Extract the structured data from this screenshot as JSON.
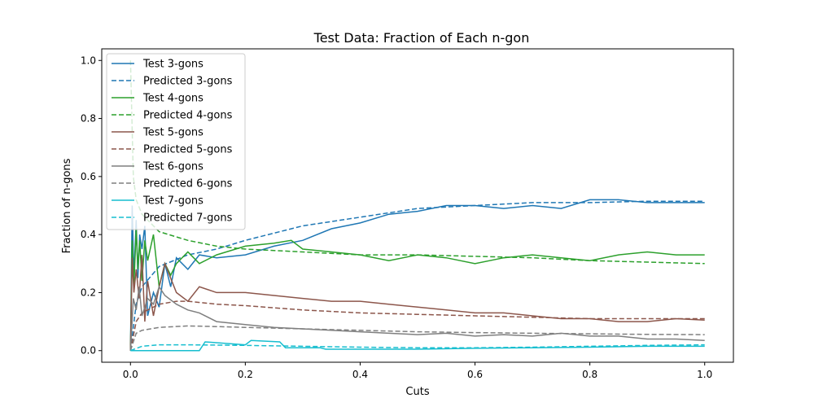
{
  "chart_data": {
    "type": "line",
    "title": "Test Data: Fraction of Each n-gon",
    "xlabel": "Cuts",
    "ylabel": "Fraction of n-gons",
    "xlim": [
      -0.05,
      1.05
    ],
    "ylim": [
      -0.04,
      1.04
    ],
    "xticks": [
      "0.0",
      "0.2",
      "0.4",
      "0.6",
      "0.8",
      "1.0"
    ],
    "yticks": [
      "0.0",
      "0.2",
      "0.4",
      "0.6",
      "0.8",
      "1.0"
    ],
    "grid": false,
    "legend_position": "top-left",
    "series": [
      {
        "name": "Test 3-gons",
        "color": "#1f77b4",
        "dash": "solid",
        "x": [
          0,
          0.003,
          0.006,
          0.01,
          0.013,
          0.016,
          0.02,
          0.025,
          0.03,
          0.04,
          0.05,
          0.06,
          0.07,
          0.08,
          0.1,
          0.12,
          0.15,
          0.2,
          0.25,
          0.3,
          0.35,
          0.4,
          0.45,
          0.5,
          0.55,
          0.6,
          0.65,
          0.7,
          0.75,
          0.8,
          0.85,
          0.9,
          0.95,
          1.0
        ],
        "y": [
          0,
          0.5,
          0.25,
          0.45,
          0.25,
          0.4,
          0.35,
          0.43,
          0.12,
          0.2,
          0.15,
          0.3,
          0.22,
          0.32,
          0.28,
          0.33,
          0.32,
          0.33,
          0.36,
          0.38,
          0.42,
          0.44,
          0.47,
          0.48,
          0.5,
          0.5,
          0.49,
          0.5,
          0.49,
          0.52,
          0.52,
          0.51,
          0.51,
          0.51
        ]
      },
      {
        "name": "Predicted 3-gons",
        "color": "#1f77b4",
        "dash": "dashed",
        "x": [
          0,
          0.01,
          0.02,
          0.05,
          0.1,
          0.15,
          0.2,
          0.3,
          0.4,
          0.5,
          0.6,
          0.7,
          0.8,
          0.9,
          1.0
        ],
        "y": [
          0,
          0.16,
          0.22,
          0.29,
          0.33,
          0.35,
          0.38,
          0.43,
          0.46,
          0.49,
          0.5,
          0.51,
          0.51,
          0.515,
          0.515
        ]
      },
      {
        "name": "Test 4-gons",
        "color": "#2ca02c",
        "dash": "solid",
        "x": [
          0,
          0.003,
          0.006,
          0.01,
          0.013,
          0.016,
          0.02,
          0.025,
          0.03,
          0.04,
          0.05,
          0.06,
          0.07,
          0.08,
          0.1,
          0.12,
          0.15,
          0.2,
          0.25,
          0.28,
          0.3,
          0.35,
          0.4,
          0.45,
          0.5,
          0.55,
          0.6,
          0.65,
          0.7,
          0.75,
          0.8,
          0.85,
          0.9,
          0.95,
          1.0
        ],
        "y": [
          0,
          0.38,
          0.22,
          0.42,
          0.28,
          0.38,
          0.24,
          0.38,
          0.31,
          0.4,
          0.22,
          0.3,
          0.26,
          0.3,
          0.34,
          0.3,
          0.33,
          0.36,
          0.37,
          0.38,
          0.35,
          0.34,
          0.33,
          0.31,
          0.33,
          0.32,
          0.3,
          0.32,
          0.33,
          0.32,
          0.31,
          0.33,
          0.34,
          0.33,
          0.33
        ]
      },
      {
        "name": "Predicted 4-gons",
        "color": "#2ca02c",
        "dash": "dashed",
        "x": [
          0,
          0.005,
          0.01,
          0.02,
          0.05,
          0.1,
          0.15,
          0.2,
          0.3,
          0.4,
          0.5,
          0.6,
          0.7,
          0.8,
          0.9,
          1.0
        ],
        "y": [
          1.0,
          0.6,
          0.52,
          0.47,
          0.41,
          0.38,
          0.36,
          0.35,
          0.34,
          0.33,
          0.33,
          0.325,
          0.32,
          0.31,
          0.305,
          0.3
        ]
      },
      {
        "name": "Test 5-gons",
        "color": "#8c564b",
        "dash": "solid",
        "x": [
          0,
          0.003,
          0.006,
          0.01,
          0.015,
          0.02,
          0.025,
          0.03,
          0.04,
          0.05,
          0.06,
          0.08,
          0.1,
          0.12,
          0.15,
          0.2,
          0.25,
          0.3,
          0.35,
          0.4,
          0.45,
          0.5,
          0.55,
          0.6,
          0.65,
          0.7,
          0.75,
          0.8,
          0.85,
          0.9,
          0.95,
          1.0
        ],
        "y": [
          0,
          0.32,
          0.2,
          0.28,
          0.18,
          0.33,
          0.1,
          0.24,
          0.12,
          0.22,
          0.3,
          0.2,
          0.17,
          0.22,
          0.2,
          0.2,
          0.19,
          0.18,
          0.17,
          0.17,
          0.16,
          0.15,
          0.14,
          0.13,
          0.13,
          0.12,
          0.11,
          0.11,
          0.1,
          0.1,
          0.11,
          0.105
        ]
      },
      {
        "name": "Predicted 5-gons",
        "color": "#8c564b",
        "dash": "dashed",
        "x": [
          0,
          0.01,
          0.02,
          0.05,
          0.08,
          0.1,
          0.15,
          0.2,
          0.3,
          0.4,
          0.5,
          0.6,
          0.7,
          0.8,
          0.9,
          1.0
        ],
        "y": [
          0,
          0.1,
          0.13,
          0.16,
          0.17,
          0.17,
          0.16,
          0.155,
          0.14,
          0.13,
          0.125,
          0.12,
          0.115,
          0.11,
          0.11,
          0.11
        ]
      },
      {
        "name": "Test 6-gons",
        "color": "#7f7f7f",
        "dash": "solid",
        "x": [
          0,
          0.005,
          0.01,
          0.015,
          0.02,
          0.03,
          0.04,
          0.05,
          0.06,
          0.08,
          0.1,
          0.12,
          0.15,
          0.2,
          0.25,
          0.3,
          0.35,
          0.4,
          0.45,
          0.5,
          0.55,
          0.6,
          0.65,
          0.7,
          0.75,
          0.8,
          0.85,
          0.9,
          0.95,
          1.0
        ],
        "y": [
          0,
          0.18,
          0.14,
          0.22,
          0.12,
          0.18,
          0.16,
          0.22,
          0.19,
          0.16,
          0.14,
          0.13,
          0.1,
          0.09,
          0.08,
          0.075,
          0.07,
          0.065,
          0.06,
          0.055,
          0.06,
          0.05,
          0.055,
          0.05,
          0.06,
          0.05,
          0.05,
          0.04,
          0.04,
          0.035
        ]
      },
      {
        "name": "Predicted 6-gons",
        "color": "#7f7f7f",
        "dash": "dashed",
        "x": [
          0,
          0.01,
          0.02,
          0.05,
          0.1,
          0.15,
          0.2,
          0.3,
          0.4,
          0.5,
          0.6,
          0.7,
          0.8,
          0.9,
          1.0
        ],
        "y": [
          0,
          0.06,
          0.07,
          0.08,
          0.085,
          0.083,
          0.08,
          0.075,
          0.07,
          0.065,
          0.062,
          0.06,
          0.058,
          0.056,
          0.055
        ]
      },
      {
        "name": "Test 7-gons",
        "color": "#17becf",
        "dash": "solid",
        "x": [
          0,
          0.05,
          0.12,
          0.13,
          0.2,
          0.21,
          0.26,
          0.27,
          0.33,
          0.34,
          0.4,
          0.5,
          0.6,
          0.7,
          0.8,
          0.9,
          1.0
        ],
        "y": [
          0,
          0,
          0,
          0.03,
          0.02,
          0.035,
          0.03,
          0.01,
          0.01,
          0.005,
          0.005,
          0.005,
          0.008,
          0.01,
          0.012,
          0.015,
          0.015
        ]
      },
      {
        "name": "Predicted 7-gons",
        "color": "#17becf",
        "dash": "dashed",
        "x": [
          0,
          0.02,
          0.05,
          0.1,
          0.2,
          0.3,
          0.4,
          0.5,
          0.6,
          0.7,
          0.8,
          0.9,
          1.0
        ],
        "y": [
          0,
          0.015,
          0.02,
          0.02,
          0.018,
          0.015,
          0.012,
          0.01,
          0.01,
          0.012,
          0.015,
          0.018,
          0.02
        ]
      }
    ]
  }
}
